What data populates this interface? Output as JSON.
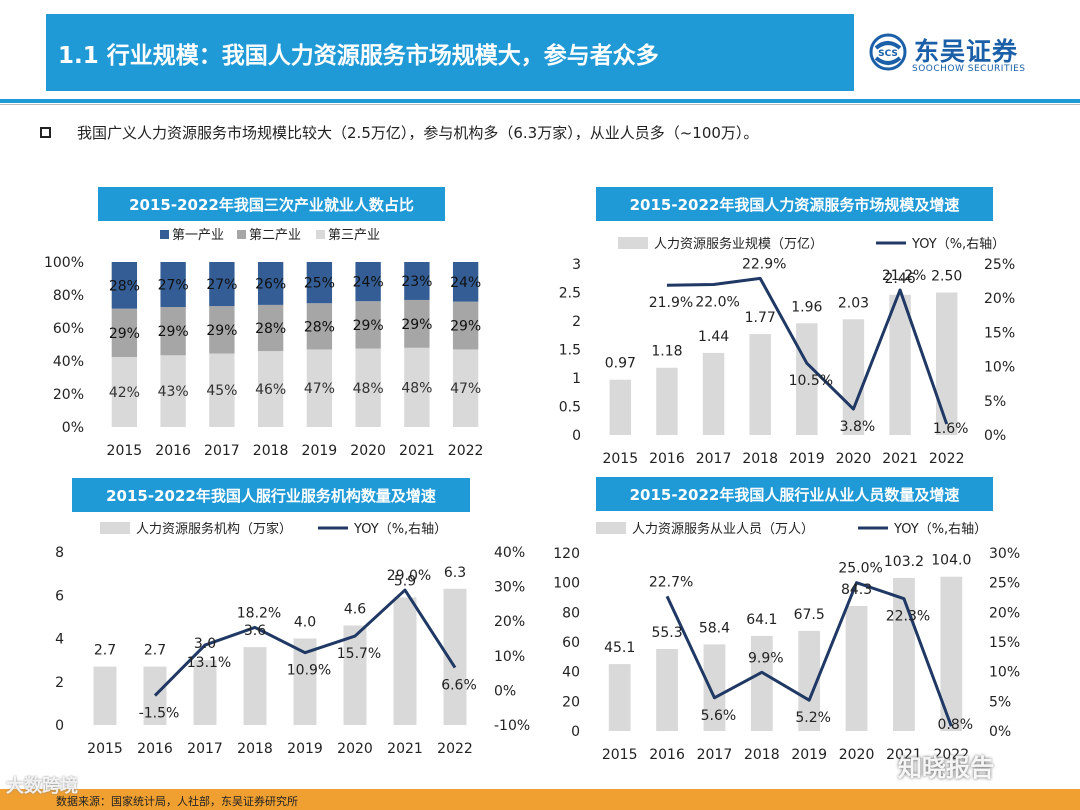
{
  "header": {
    "title": "1.1 行业规模：我国人力资源服务市场规模大，参与者众多",
    "logo_cn": "东吴证券",
    "logo_en": "SOOCHOW SECURITIES",
    "logo_mark": "SCS"
  },
  "bullet": {
    "text": "我国广义人力资源服务市场规模比较大（2.5万亿），参与机构多（6.3万家），从业人员多（~100万）。"
  },
  "footer": {
    "source": "数据来源：国家统计局，人社部，东吴证券研究所",
    "watermark_left": "大数跨境",
    "watermark_right": "知晓报告"
  },
  "colors": {
    "brand_blue": "#1f9ad6",
    "dark_blue": "#335d94",
    "mid_grey": "#a6a6a6",
    "light_grey": "#d9d9d9",
    "line_navy": "#1f3864",
    "footer_orange": "#f0a030"
  },
  "chart_data": [
    {
      "type": "bar",
      "stacked": true,
      "title": "2015-2022年我国三次产业就业人数占比",
      "categories": [
        "2015",
        "2016",
        "2017",
        "2018",
        "2019",
        "2020",
        "2021",
        "2022"
      ],
      "series": [
        {
          "name": "第一产业",
          "values": [
            28,
            27,
            27,
            26,
            25,
            24,
            23,
            24
          ],
          "labels": [
            "28%",
            "27%",
            "27%",
            "26%",
            "25%",
            "24%",
            "23%",
            "24%"
          ]
        },
        {
          "name": "第二产业",
          "values": [
            29,
            29,
            29,
            28,
            28,
            29,
            29,
            29
          ],
          "labels": [
            "29%",
            "29%",
            "29%",
            "28%",
            "28%",
            "29%",
            "29%",
            "29%"
          ]
        },
        {
          "name": "第三产业",
          "values": [
            42,
            43,
            45,
            46,
            47,
            48,
            48,
            47
          ],
          "labels": [
            "42%",
            "43%",
            "45%",
            "46%",
            "47%",
            "48%",
            "48%",
            "47%"
          ]
        }
      ],
      "yticks": [
        "0%",
        "20%",
        "40%",
        "60%",
        "80%",
        "100%"
      ],
      "ylim": [
        0,
        100
      ],
      "legend": "top"
    },
    {
      "type": "bar+line",
      "title": "2015-2022年我国人力资源服务市场规模及增速",
      "categories": [
        "2015",
        "2016",
        "2017",
        "2018",
        "2019",
        "2020",
        "2021",
        "2022"
      ],
      "bar_series": {
        "name": "人力资源服务业规模（万亿）",
        "values": [
          0.97,
          1.18,
          1.44,
          1.77,
          1.96,
          2.03,
          2.46,
          2.5
        ],
        "labels": [
          "0.97",
          "1.18",
          "1.44",
          "1.77",
          "1.96",
          "2.03",
          "2.46",
          "2.50"
        ]
      },
      "line_series": {
        "name": "YOY（%,右轴）",
        "values": [
          null,
          21.9,
          22.0,
          22.9,
          10.5,
          3.8,
          21.2,
          1.6
        ],
        "labels": [
          "",
          "21.9%",
          "22.0%",
          "22.9%",
          "10.5%",
          "3.8%",
          "21.2%",
          "1.6%"
        ]
      },
      "yticks_left": [
        "0",
        "0.5",
        "1",
        "1.5",
        "2",
        "2.5",
        "3"
      ],
      "ylim_left": [
        0,
        3
      ],
      "yticks_right": [
        "0%",
        "5%",
        "10%",
        "15%",
        "20%",
        "25%"
      ],
      "ylim_right": [
        0,
        25
      ],
      "legend": "top"
    },
    {
      "type": "bar+line",
      "title": "2015-2022年我国人服行业服务机构数量及增速",
      "categories": [
        "2015",
        "2016",
        "2017",
        "2018",
        "2019",
        "2020",
        "2021",
        "2022"
      ],
      "bar_series": {
        "name": "人力资源服务机构（万家）",
        "values": [
          2.7,
          2.7,
          3.0,
          3.6,
          4.0,
          4.6,
          5.9,
          6.3
        ],
        "labels": [
          "2.7",
          "2.7",
          "3.0",
          "3.6",
          "4.0",
          "4.6",
          "5.9",
          "6.3"
        ]
      },
      "line_series": {
        "name": "YOY（%,右轴）",
        "values": [
          null,
          -1.5,
          13.1,
          18.2,
          10.9,
          15.7,
          29.0,
          6.6
        ],
        "labels": [
          "",
          "-1.5%",
          "13.1%",
          "18.2%",
          "10.9%",
          "15.7%",
          "29.0%",
          "6.6%"
        ]
      },
      "yticks_left": [
        "0",
        "2",
        "4",
        "6",
        "8"
      ],
      "ylim_left": [
        0,
        8
      ],
      "yticks_right": [
        "-10%",
        "0%",
        "10%",
        "20%",
        "30%",
        "40%"
      ],
      "ylim_right": [
        -10,
        40
      ],
      "legend": "top"
    },
    {
      "type": "bar+line",
      "title": "2015-2022年我国人服行业从业人员数量及增速",
      "categories": [
        "2015",
        "2016",
        "2017",
        "2018",
        "2019",
        "2020",
        "2021",
        "2022"
      ],
      "bar_series": {
        "name": "人力资源服务从业人员（万人）",
        "values": [
          45.1,
          55.3,
          58.4,
          64.1,
          67.5,
          84.3,
          103.2,
          104.0
        ],
        "labels": [
          "45.1",
          "55.3",
          "58.4",
          "64.1",
          "67.5",
          "84.3",
          "103.2",
          "104.0"
        ]
      },
      "line_series": {
        "name": "YOY（%,右轴）",
        "values": [
          null,
          22.7,
          5.6,
          9.9,
          5.2,
          25.0,
          22.3,
          0.8
        ],
        "labels": [
          "",
          "22.7%",
          "5.6%",
          "9.9%",
          "5.2%",
          "25.0%",
          "22.3%",
          "0.8%"
        ]
      },
      "yticks_left": [
        "0",
        "20",
        "40",
        "60",
        "80",
        "100",
        "120"
      ],
      "ylim_left": [
        0,
        120
      ],
      "yticks_right": [
        "0%",
        "5%",
        "10%",
        "15%",
        "20%",
        "25%",
        "30%"
      ],
      "ylim_right": [
        0,
        30
      ],
      "legend": "top"
    }
  ]
}
